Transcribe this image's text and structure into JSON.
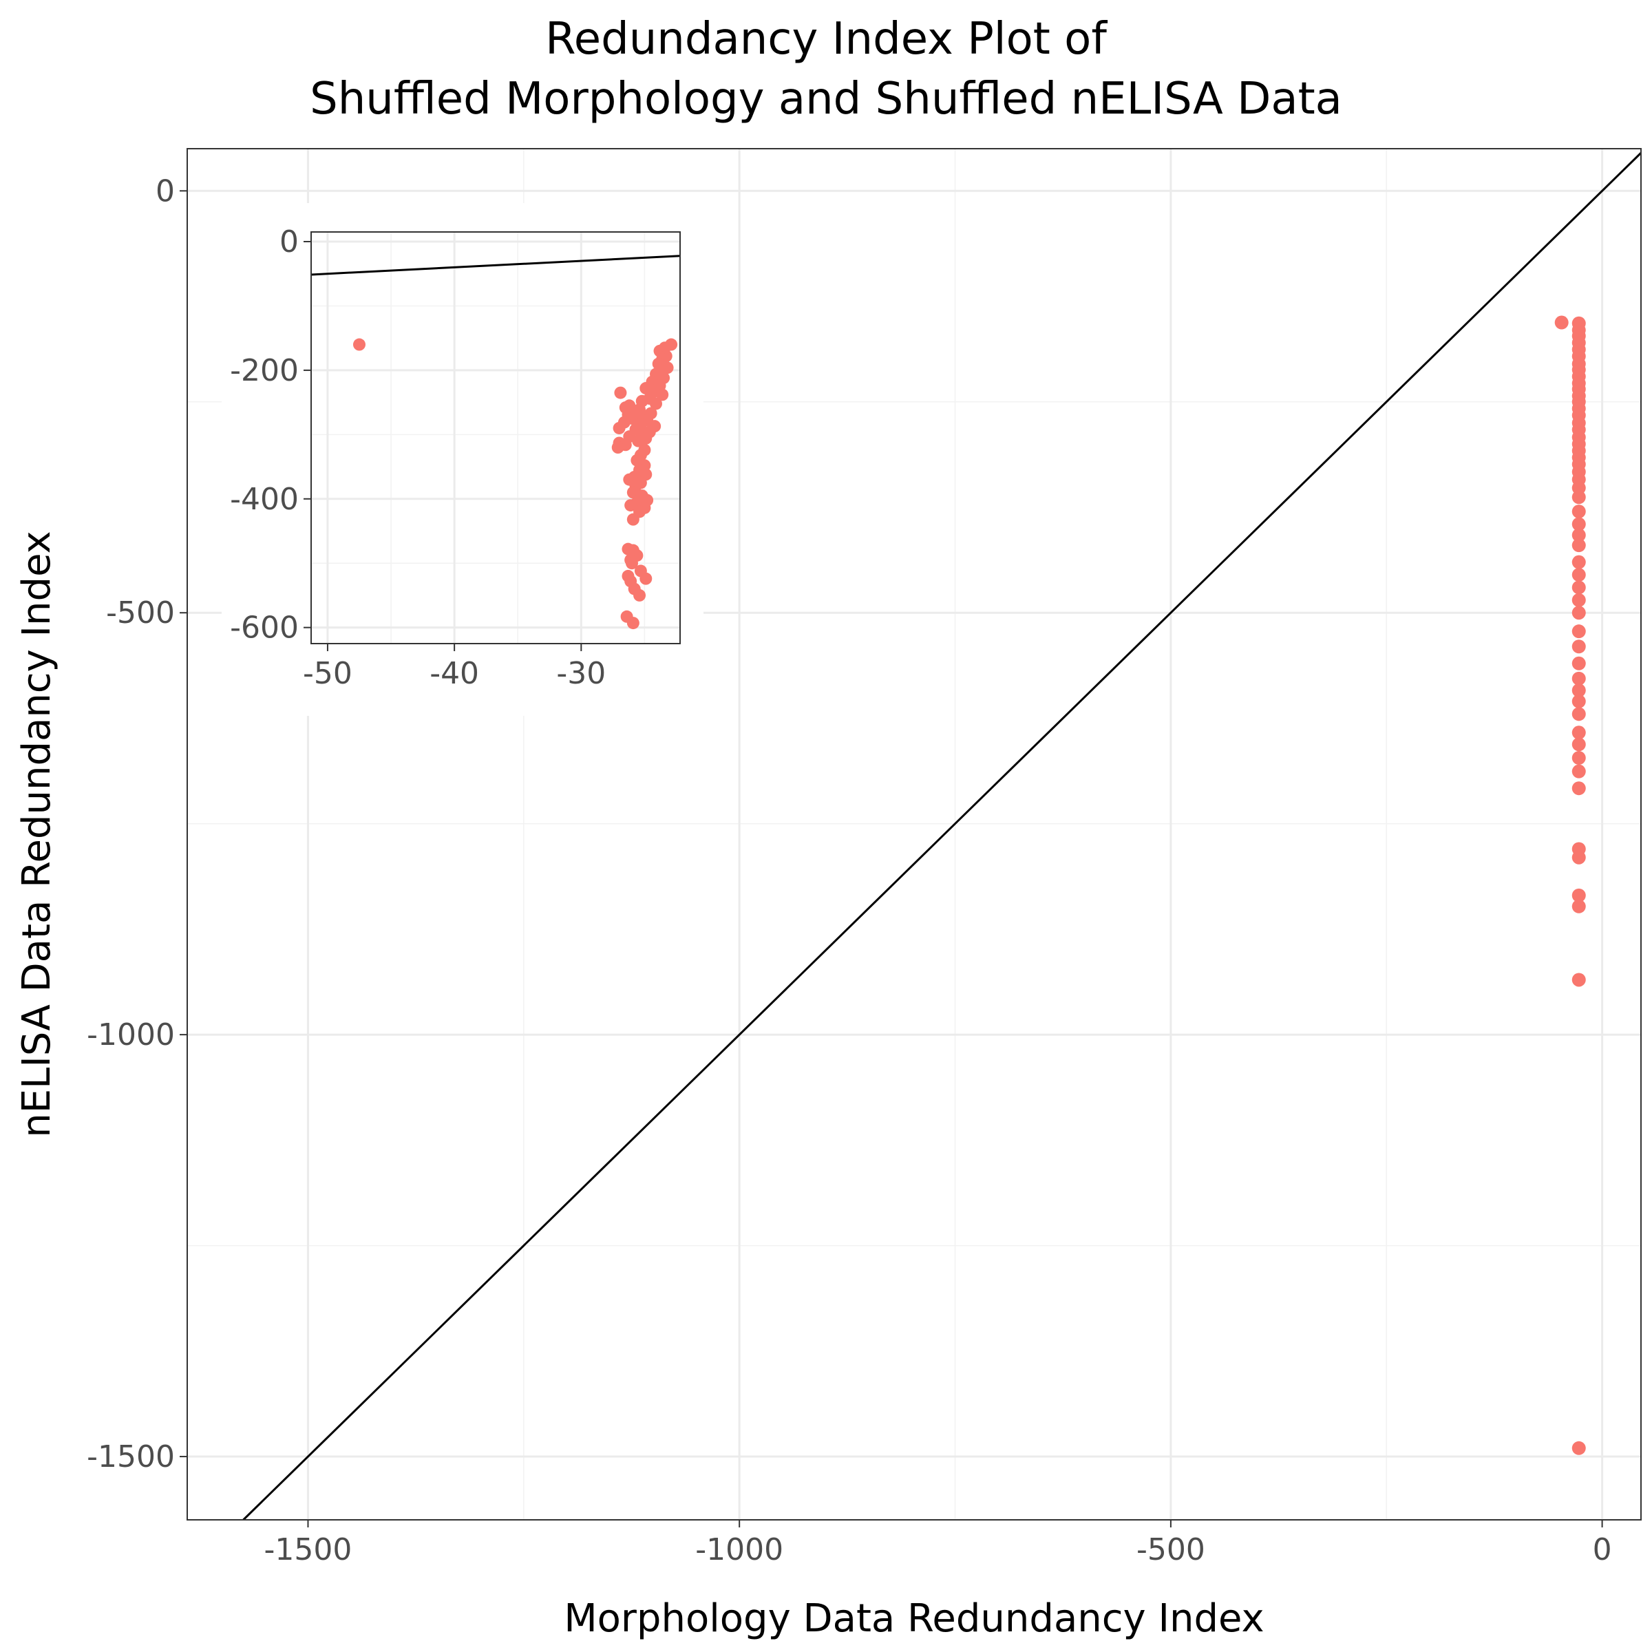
{
  "chart_data": {
    "type": "scatter",
    "title": "Redundancy Index Plot of\nShuffled Morphology and Shuffled nELISA Data",
    "title_lines": [
      "Redundancy Index Plot of",
      "Shuffled Morphology and Shuffled nELISA Data"
    ],
    "xlabel": "Morphology Data Redundancy Index",
    "ylabel": "nELISA Data Redundancy Index",
    "xlim": [
      -1640,
      45
    ],
    "ylim": [
      -1575,
      50
    ],
    "xticks": [
      -1500,
      -1000,
      -500,
      0
    ],
    "xtick_labels": [
      "-1500",
      "-1000",
      "-500",
      "0"
    ],
    "yticks": [
      -1500,
      -1000,
      -500,
      0
    ],
    "ytick_labels": [
      "-1500",
      "-1000",
      "-500",
      "0"
    ],
    "grid": true,
    "reference_line": "y = x",
    "point_color": "#f8766d",
    "line_color": "#000000",
    "series": [
      {
        "points": [
          [
            -47,
            -156
          ],
          [
            -27,
            -157
          ],
          [
            -27,
            -165
          ],
          [
            -27,
            -172
          ],
          [
            -27,
            -180
          ],
          [
            -27,
            -188
          ],
          [
            -27,
            -196
          ],
          [
            -27,
            -205
          ],
          [
            -27,
            -212
          ],
          [
            -27,
            -220
          ],
          [
            -27,
            -228
          ],
          [
            -27,
            -235
          ],
          [
            -27,
            -243
          ],
          [
            -27,
            -250
          ],
          [
            -27,
            -258
          ],
          [
            -27,
            -266
          ],
          [
            -27,
            -275
          ],
          [
            -27,
            -283
          ],
          [
            -27,
            -292
          ],
          [
            -27,
            -300
          ],
          [
            -27,
            -308
          ],
          [
            -27,
            -316
          ],
          [
            -27,
            -324
          ],
          [
            -27,
            -333
          ],
          [
            -27,
            -342
          ],
          [
            -27,
            -352
          ],
          [
            -27,
            -363
          ],
          [
            -27,
            -380
          ],
          [
            -27,
            -395
          ],
          [
            -27,
            -408
          ],
          [
            -27,
            -420
          ],
          [
            -27,
            -440
          ],
          [
            -27,
            -455
          ],
          [
            -27,
            -470
          ],
          [
            -27,
            -485
          ],
          [
            -27,
            -500
          ],
          [
            -27,
            -522
          ],
          [
            -27,
            -540
          ],
          [
            -27,
            -560
          ],
          [
            -27,
            -578
          ],
          [
            -27,
            -592
          ],
          [
            -27,
            -605
          ],
          [
            -27,
            -620
          ],
          [
            -27,
            -642
          ],
          [
            -27,
            -656
          ],
          [
            -27,
            -672
          ],
          [
            -27,
            -688
          ],
          [
            -27,
            -708
          ],
          [
            -27,
            -780
          ],
          [
            -27,
            -790
          ],
          [
            -27,
            -835
          ],
          [
            -27,
            -848
          ],
          [
            -27,
            -935
          ],
          [
            -27,
            -1490
          ]
        ]
      }
    ],
    "inset": {
      "type": "scatter",
      "xlim": [
        -51.3,
        -22.2
      ],
      "ylim": [
        -625,
        15
      ],
      "xticks": [
        -50,
        -40,
        -30
      ],
      "xtick_labels": [
        "-50",
        "-40",
        "-30"
      ],
      "yticks": [
        0,
        -200,
        -400,
        -600
      ],
      "ytick_labels": [
        "0",
        "-200",
        "-400",
        "-600"
      ],
      "grid": true,
      "reference_line": "y = x",
      "points": [
        [
          -47.5,
          -160
        ],
        [
          -22.9,
          -160
        ],
        [
          -23.4,
          -165
        ],
        [
          -23.8,
          -170
        ],
        [
          -23.3,
          -178
        ],
        [
          -23.6,
          -183
        ],
        [
          -23.9,
          -190
        ],
        [
          -23.2,
          -196
        ],
        [
          -23.7,
          -201
        ],
        [
          -24.1,
          -206
        ],
        [
          -23.5,
          -212
        ],
        [
          -24.4,
          -218
        ],
        [
          -23.8,
          -224
        ],
        [
          -24.9,
          -228
        ],
        [
          -24.2,
          -233
        ],
        [
          -26.9,
          -235
        ],
        [
          -23.6,
          -238
        ],
        [
          -24.6,
          -244
        ],
        [
          -25.2,
          -248
        ],
        [
          -24.1,
          -252
        ],
        [
          -26.2,
          -255
        ],
        [
          -26.5,
          -258
        ],
        [
          -25.4,
          -261
        ],
        [
          -25.9,
          -264
        ],
        [
          -24.5,
          -267
        ],
        [
          -26.3,
          -269
        ],
        [
          -25.1,
          -272
        ],
        [
          -26.0,
          -275
        ],
        [
          -24.8,
          -278
        ],
        [
          -26.6,
          -281
        ],
        [
          -25.3,
          -284
        ],
        [
          -24.2,
          -287
        ],
        [
          -27.0,
          -290
        ],
        [
          -25.7,
          -292
        ],
        [
          -24.6,
          -296
        ],
        [
          -25.2,
          -300
        ],
        [
          -26.2,
          -303
        ],
        [
          -24.9,
          -306
        ],
        [
          -25.5,
          -310
        ],
        [
          -27.0,
          -313
        ],
        [
          -26.5,
          -316
        ],
        [
          -27.1,
          -320
        ],
        [
          -25.0,
          -324
        ],
        [
          -25.3,
          -332
        ],
        [
          -25.6,
          -340
        ],
        [
          -25.0,
          -348
        ],
        [
          -25.4,
          -355
        ],
        [
          -24.9,
          -362
        ],
        [
          -25.8,
          -366
        ],
        [
          -26.2,
          -370
        ],
        [
          -25.3,
          -375
        ],
        [
          -25.7,
          -380
        ],
        [
          -25.9,
          -390
        ],
        [
          -25.2,
          -395
        ],
        [
          -24.8,
          -402
        ],
        [
          -25.6,
          -406
        ],
        [
          -26.1,
          -410
        ],
        [
          -25.0,
          -414
        ],
        [
          -25.4,
          -420
        ],
        [
          -25.9,
          -432
        ],
        [
          -26.3,
          -478
        ],
        [
          -25.9,
          -480
        ],
        [
          -25.6,
          -488
        ],
        [
          -26.1,
          -495
        ],
        [
          -26.0,
          -500
        ],
        [
          -25.3,
          -512
        ],
        [
          -26.3,
          -520
        ],
        [
          -24.9,
          -524
        ],
        [
          -26.1,
          -528
        ],
        [
          -25.8,
          -540
        ],
        [
          -25.4,
          -550
        ],
        [
          -26.4,
          -583
        ],
        [
          -25.9,
          -593
        ]
      ]
    }
  }
}
